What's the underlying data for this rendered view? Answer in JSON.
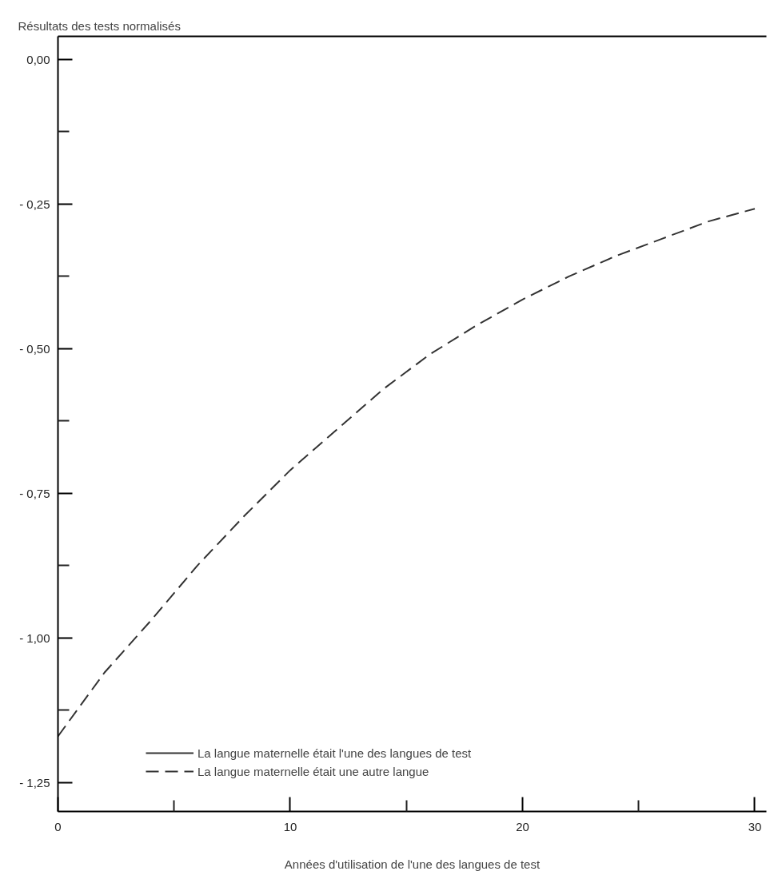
{
  "chart_data": {
    "type": "line",
    "ylabel": "Résultats des tests normalisés",
    "xlabel": "Années d'utilisation de l'une des langues de test",
    "x": [
      0,
      2,
      4,
      6,
      8,
      10,
      12,
      14,
      16,
      18,
      20,
      22,
      24,
      26,
      28,
      30
    ],
    "series": [
      {
        "name": "La langue maternelle était l'une des langues de test",
        "color": "#333333",
        "line_style": "solid",
        "values": [
          null,
          null,
          null,
          null,
          null,
          null,
          null,
          null,
          null,
          null,
          null,
          null,
          null,
          null,
          null,
          null
        ]
      },
      {
        "name": "La langue maternelle était une autre langue",
        "color": "#333333",
        "line_style": "dashed",
        "values": [
          -1.17,
          -1.06,
          -0.97,
          -0.875,
          -0.79,
          -0.71,
          -0.64,
          -0.57,
          -0.51,
          -0.46,
          -0.415,
          -0.375,
          -0.34,
          -0.31,
          -0.28,
          -0.258
        ]
      }
    ],
    "xlim": [
      0,
      30.5
    ],
    "ylim": [
      -1.3,
      0.04
    ],
    "xticks": [
      0,
      {
        "value": 5,
        "label": null
      },
      10,
      {
        "value": 15,
        "label": null
      },
      20,
      {
        "value": 25,
        "label": null
      },
      30
    ],
    "yticks": [
      {
        "value": 0,
        "label": "0,00"
      },
      {
        "value": -0.125,
        "label": null
      },
      {
        "value": -0.25,
        "label": "- 0,25"
      },
      {
        "value": -0.375,
        "label": null
      },
      {
        "value": -0.5,
        "label": "- 0,50"
      },
      {
        "value": -0.625,
        "label": null
      },
      {
        "value": -0.75,
        "label": "- 0,75"
      },
      {
        "value": -0.875,
        "label": null
      },
      {
        "value": -1.0,
        "label": "- 1,00"
      },
      {
        "value": -1.125,
        "label": null
      },
      {
        "value": -1.25,
        "label": "- 1,25"
      }
    ],
    "grid": false,
    "legend": "bottom left"
  }
}
